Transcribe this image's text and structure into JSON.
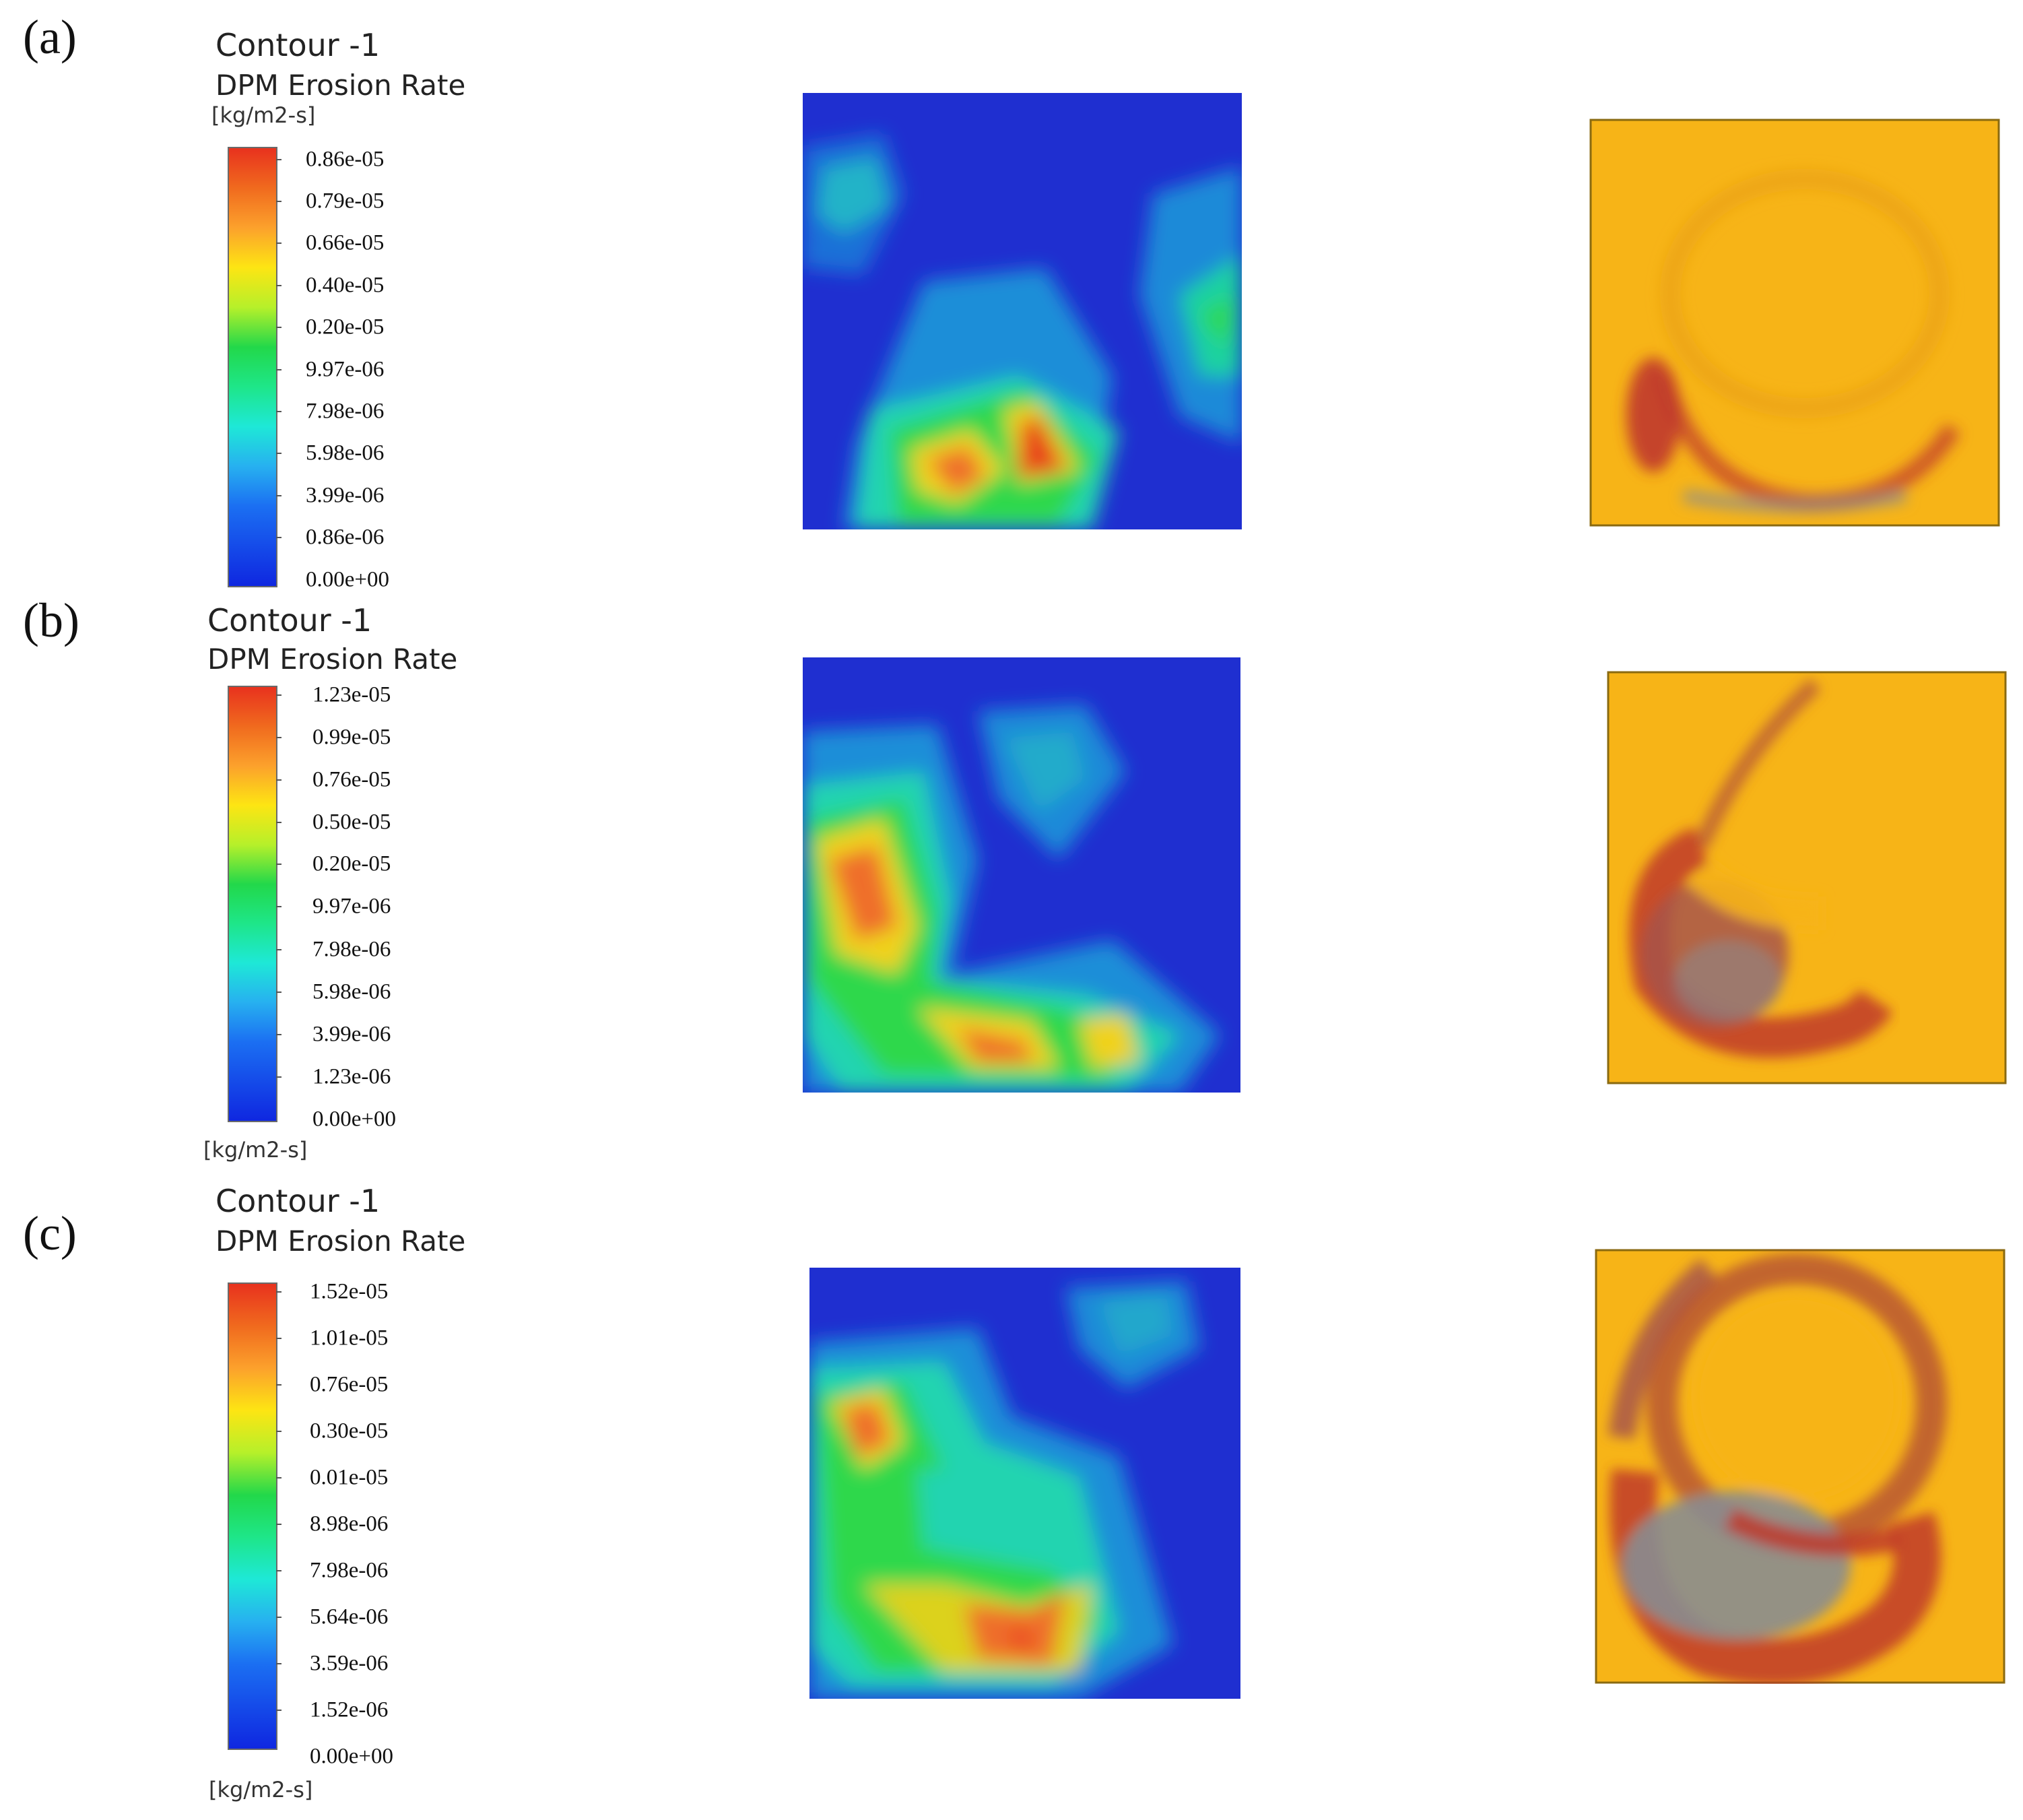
{
  "panels": [
    {
      "label": "(a)",
      "legend": {
        "title": "Contour -1",
        "subtitle": "DPM Erosion Rate",
        "unit": "[kg/m2-s]",
        "ticks": [
          "0.86e-05",
          "0.79e-05",
          "0.66e-05",
          "0.40e-05",
          "0.20e-05",
          "9.97e-06",
          "7.98e-06",
          "5.98e-06",
          "3.99e-06",
          "0.86e-06",
          "0.00e+00"
        ]
      }
    },
    {
      "label": "(b)",
      "legend": {
        "title": "Contour -1",
        "subtitle": "DPM Erosion Rate",
        "unit": "[kg/m2-s]",
        "ticks": [
          "1.23e-05",
          "0.99e-05",
          "0.76e-05",
          "0.50e-05",
          "0.20e-05",
          "9.97e-06",
          "7.98e-06",
          "5.98e-06",
          "3.99e-06",
          "1.23e-06",
          "0.00e+00"
        ]
      }
    },
    {
      "label": "(c)",
      "legend": {
        "title": "Contour -1",
        "subtitle": "DPM Erosion Rate",
        "unit": "[kg/m2-s]",
        "ticks": [
          "1.52e-05",
          "1.01e-05",
          "0.76e-05",
          "0.30e-05",
          "0.01e-05",
          "8.98e-06",
          "7.98e-06",
          "5.64e-06",
          "3.59e-06",
          "1.52e-06",
          "0.00e+00"
        ]
      }
    }
  ],
  "colors": {
    "contour_background": "#1f2fd0",
    "coating": "#f7b417",
    "erosion_red": "#c0392b",
    "erosion_grey": "#8a8d90"
  }
}
